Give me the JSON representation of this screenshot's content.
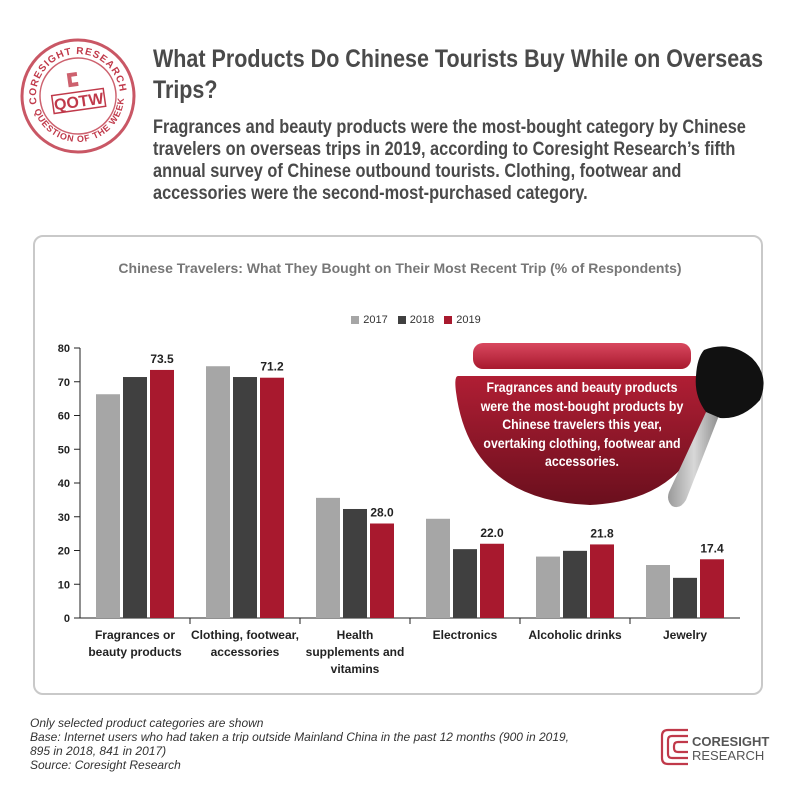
{
  "header": {
    "title": "What Products Do Chinese Tourists Buy While on Overseas Trips?",
    "subtitle": "Fragrances and beauty products were the most-bought category by Chinese travelers on overseas trips in 2019, according to Coresight Research’s fifth annual survey of Chinese outbound tourists. Clothing, footwear and accessories were the second-most-purchased category."
  },
  "seal": {
    "top_text": "CORESIGHT RESEARCH",
    "bottom_text": "QUESTION OF THE WEEK",
    "center_text": "QOTW"
  },
  "colors": {
    "2017": "#a6a6a6",
    "2018": "#404040",
    "2019": "#a8192e",
    "accent": "#a8192e"
  },
  "chart_data": {
    "type": "bar",
    "title": "Chinese Travelers: What They Bought on Their Most Recent Trip (% of Respondents)",
    "categories": [
      [
        "Fragrances or",
        "beauty products"
      ],
      [
        "Clothing, footwear,",
        "accessories"
      ],
      [
        "Health",
        "supplements and",
        "vitamins"
      ],
      [
        "Electronics"
      ],
      [
        "Alcoholic drinks"
      ],
      [
        "Jewelry"
      ]
    ],
    "series": [
      {
        "name": "2017",
        "values": [
          66.3,
          74.6,
          35.6,
          29.4,
          18.2,
          15.7
        ]
      },
      {
        "name": "2018",
        "values": [
          71.4,
          71.4,
          32.3,
          20.4,
          19.9,
          11.9
        ]
      },
      {
        "name": "2019",
        "values": [
          73.5,
          71.2,
          28.0,
          22.0,
          21.8,
          17.4
        ]
      }
    ],
    "data_labels": [
      "73.5",
      "71.2",
      "28.0",
      "22.0",
      "21.8",
      "17.4"
    ],
    "ylim": [
      0,
      80
    ],
    "yticks": [
      0,
      10,
      20,
      30,
      40,
      50,
      60,
      70,
      80
    ],
    "legend": "top-center",
    "grid": false
  },
  "callout": {
    "text": "Fragrances and beauty products were the most-bought products by Chinese travelers this year, overtaking clothing, footwear and accessories."
  },
  "footer": {
    "notes": [
      "Only selected product categories are shown",
      "Base: Internet users who had taken a trip outside Mainland China in the past 12 months (900 in 2019, 895 in 2018, 841 in 2017)",
      "Source: Coresight Research"
    ],
    "logo_line1": "CORESIGHT",
    "logo_line2": "RESEARCH"
  }
}
